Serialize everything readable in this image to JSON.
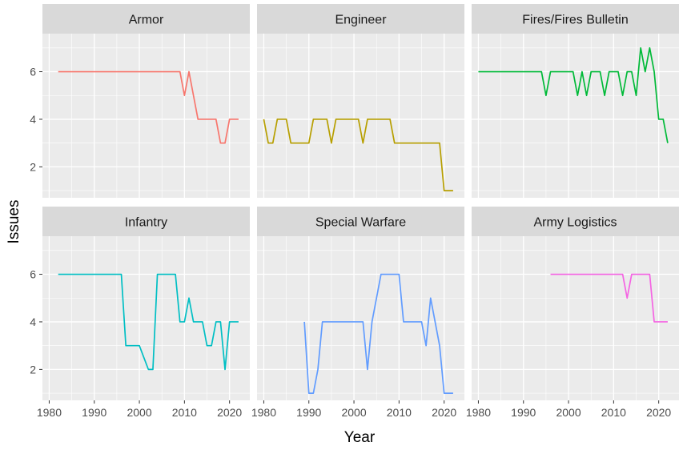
{
  "chart_data": {
    "type": "line",
    "xlabel": "Year",
    "ylabel": "Issues",
    "xlim": [
      1978.5,
      2024.5
    ],
    "ylim": [
      0.7,
      7.6
    ],
    "x_ticks": [
      1980,
      1990,
      2000,
      2010,
      2020
    ],
    "x_tick_labels": [
      "1980",
      "1990",
      "2000",
      "2010",
      "2020"
    ],
    "y_ticks": [
      2,
      4,
      6
    ],
    "y_tick_labels": [
      "2",
      "4",
      "6"
    ],
    "grid": true,
    "legend": "none",
    "layout": "facets-2x3",
    "panels": [
      {
        "name": "Armor",
        "color": "#F8766D",
        "x": [
          1982,
          1983,
          1984,
          1985,
          1986,
          1987,
          1988,
          1989,
          1990,
          1991,
          1992,
          1993,
          1994,
          1995,
          1996,
          1997,
          1998,
          1999,
          2000,
          2001,
          2002,
          2003,
          2004,
          2005,
          2006,
          2007,
          2008,
          2009,
          2010,
          2011,
          2012,
          2013,
          2014,
          2015,
          2016,
          2017,
          2018,
          2019,
          2020,
          2021,
          2022
        ],
        "y": [
          6,
          6,
          6,
          6,
          6,
          6,
          6,
          6,
          6,
          6,
          6,
          6,
          6,
          6,
          6,
          6,
          6,
          6,
          6,
          6,
          6,
          6,
          6,
          6,
          6,
          6,
          6,
          6,
          5,
          6,
          5,
          4,
          4,
          4,
          4,
          4,
          3,
          3,
          4,
          4,
          4
        ]
      },
      {
        "name": "Engineer",
        "color": "#B79F00",
        "x": [
          1980,
          1981,
          1982,
          1983,
          1984,
          1985,
          1986,
          1987,
          1988,
          1989,
          1990,
          1991,
          1992,
          1993,
          1994,
          1995,
          1996,
          1997,
          1998,
          1999,
          2000,
          2001,
          2002,
          2003,
          2004,
          2005,
          2006,
          2007,
          2008,
          2009,
          2010,
          2011,
          2012,
          2013,
          2014,
          2015,
          2016,
          2017,
          2018,
          2019,
          2020,
          2021,
          2022
        ],
        "y": [
          4,
          3,
          3,
          4,
          4,
          4,
          3,
          3,
          3,
          3,
          3,
          4,
          4,
          4,
          4,
          3,
          4,
          4,
          4,
          4,
          4,
          4,
          3,
          4,
          4,
          4,
          4,
          4,
          4,
          3,
          3,
          3,
          3,
          3,
          3,
          3,
          3,
          3,
          3,
          3,
          1,
          1,
          1
        ]
      },
      {
        "name": "Fires/Fires Bulletin",
        "color": "#00BA38",
        "x": [
          1980,
          1981,
          1982,
          1983,
          1984,
          1985,
          1986,
          1987,
          1988,
          1989,
          1990,
          1991,
          1992,
          1993,
          1994,
          1995,
          1996,
          1997,
          1998,
          1999,
          2000,
          2001,
          2002,
          2003,
          2004,
          2005,
          2006,
          2007,
          2008,
          2009,
          2010,
          2011,
          2012,
          2013,
          2014,
          2015,
          2016,
          2017,
          2018,
          2019,
          2020,
          2021,
          2022
        ],
        "y": [
          6,
          6,
          6,
          6,
          6,
          6,
          6,
          6,
          6,
          6,
          6,
          6,
          6,
          6,
          6,
          5,
          6,
          6,
          6,
          6,
          6,
          6,
          5,
          6,
          5,
          6,
          6,
          6,
          5,
          6,
          6,
          6,
          5,
          6,
          6,
          5,
          7,
          6,
          7,
          6,
          4,
          4,
          3
        ]
      },
      {
        "name": "Infantry",
        "color": "#00BFC4",
        "x": [
          1982,
          1983,
          1984,
          1985,
          1986,
          1987,
          1988,
          1989,
          1990,
          1991,
          1992,
          1993,
          1994,
          1995,
          1996,
          1997,
          1998,
          1999,
          2000,
          2001,
          2002,
          2003,
          2004,
          2005,
          2006,
          2007,
          2008,
          2009,
          2010,
          2011,
          2012,
          2013,
          2014,
          2015,
          2016,
          2017,
          2018,
          2019,
          2020,
          2021,
          2022
        ],
        "y": [
          6,
          6,
          6,
          6,
          6,
          6,
          6,
          6,
          6,
          6,
          6,
          6,
          6,
          6,
          6,
          3,
          3,
          3,
          3,
          2.5,
          2,
          2,
          6,
          6,
          6,
          6,
          6,
          4,
          4,
          5,
          4,
          4,
          4,
          3,
          3,
          4,
          4,
          2,
          4,
          4,
          4
        ]
      },
      {
        "name": "Special Warfare",
        "color": "#619CFF",
        "x": [
          1989,
          1990,
          1991,
          1992,
          1993,
          1994,
          1995,
          1996,
          1997,
          1998,
          1999,
          2000,
          2001,
          2002,
          2003,
          2004,
          2005,
          2006,
          2007,
          2008,
          2009,
          2010,
          2011,
          2012,
          2013,
          2014,
          2015,
          2016,
          2017,
          2018,
          2019,
          2020,
          2021,
          2022
        ],
        "y": [
          4,
          1,
          1,
          2,
          4,
          4,
          4,
          4,
          4,
          4,
          4,
          4,
          4,
          4,
          2,
          4,
          5,
          6,
          6,
          6,
          6,
          6,
          4,
          4,
          4,
          4,
          4,
          3,
          5,
          4,
          3,
          1,
          1,
          1
        ]
      },
      {
        "name": "Army Logistics",
        "color": "#F564E3",
        "x": [
          1996,
          1997,
          1998,
          1999,
          2000,
          2001,
          2002,
          2003,
          2004,
          2005,
          2006,
          2007,
          2008,
          2009,
          2010,
          2011,
          2012,
          2013,
          2014,
          2015,
          2016,
          2017,
          2018,
          2019,
          2020,
          2021,
          2022
        ],
        "y": [
          6,
          6,
          6,
          6,
          6,
          6,
          6,
          6,
          6,
          6,
          6,
          6,
          6,
          6,
          6,
          6,
          6,
          5,
          6,
          6,
          6,
          6,
          6,
          4,
          4,
          4,
          4
        ]
      }
    ]
  }
}
